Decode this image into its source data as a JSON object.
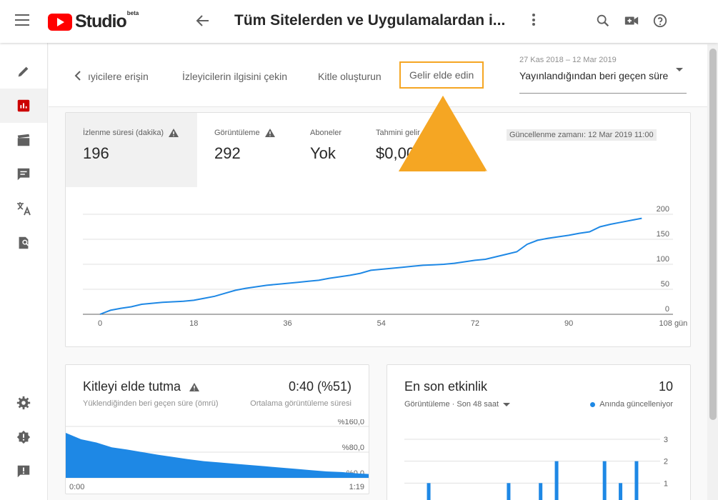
{
  "topbar": {
    "logo_text": "Studio",
    "logo_beta": "beta",
    "title": "Tüm Sitelerden ve Uygulamalardan i..."
  },
  "subnav": {
    "tabs": [
      {
        "label": "ıyicilere erişin"
      },
      {
        "label": "İzleyicilerin ilgisini çekin"
      },
      {
        "label": "Kitle oluşturun"
      },
      {
        "label": "Gelir elde edin"
      }
    ],
    "date_range": "27 Kas 2018 – 12 Mar 2019",
    "period": "Yayınlandığından beri geçen süre"
  },
  "overview": {
    "metrics": [
      {
        "label": "İzlenme süresi (dakika)",
        "value": "196",
        "warning": true
      },
      {
        "label": "Görüntüleme",
        "value": "292",
        "warning": true
      },
      {
        "label": "Aboneler",
        "value": "Yok",
        "warning": false
      },
      {
        "label": "Tahmini gelir",
        "value": "$0,00",
        "warning": false
      }
    ],
    "updated": "Güncellenme zamanı: 12 Mar 2019 11:00"
  },
  "chart_data": [
    {
      "type": "line",
      "y_ticks": [
        "200",
        "150",
        "100",
        "50",
        "0"
      ],
      "x_ticks": [
        "0",
        "18",
        "36",
        "54",
        "72",
        "90",
        "108 gün"
      ],
      "ylim": [
        0,
        200
      ],
      "xlim": [
        0,
        110
      ],
      "grid": true,
      "color": "#1e88e5",
      "series": [
        {
          "x": [
            0,
            2,
            4,
            6,
            8,
            10,
            12,
            14,
            16,
            18,
            20,
            22,
            24,
            26,
            28,
            30,
            32,
            34,
            36,
            38,
            40,
            42,
            44,
            46,
            48,
            50,
            52,
            54,
            56,
            58,
            60,
            62,
            64,
            66,
            68,
            70,
            72,
            74,
            76,
            78,
            80,
            82,
            84,
            86,
            88,
            90,
            92,
            94,
            96,
            98,
            100,
            102,
            104
          ],
          "values": [
            0,
            8,
            12,
            15,
            20,
            22,
            24,
            25,
            26,
            28,
            32,
            36,
            42,
            48,
            52,
            55,
            58,
            60,
            62,
            64,
            66,
            68,
            72,
            75,
            78,
            82,
            88,
            90,
            92,
            94,
            96,
            98,
            99,
            100,
            102,
            105,
            108,
            110,
            115,
            120,
            125,
            140,
            148,
            152,
            155,
            158,
            162,
            165,
            175,
            180,
            184,
            188,
            192
          ]
        }
      ]
    },
    {
      "type": "area",
      "y_ticks": [
        "%160,0",
        "%80,0",
        "%0,0"
      ],
      "x_ticks": [
        "0:00",
        "1:19"
      ],
      "ylim": [
        0,
        160
      ],
      "grid": true,
      "color": "#1e88e5",
      "series": [
        {
          "x": [
            0,
            4,
            8,
            12,
            16,
            20,
            24,
            28,
            32,
            36,
            40,
            44,
            48,
            52,
            56,
            60,
            64,
            68,
            72,
            76,
            79
          ],
          "values": [
            140,
            120,
            110,
            95,
            88,
            80,
            72,
            65,
            58,
            52,
            48,
            44,
            40,
            36,
            32,
            28,
            24,
            20,
            18,
            14,
            12
          ]
        }
      ]
    },
    {
      "type": "bar",
      "y_ticks": [
        "3",
        "2",
        "1"
      ],
      "ylim": [
        0,
        3
      ],
      "grid": true,
      "color": "#1e88e5",
      "series": [
        {
          "x": [
            1,
            6,
            8,
            9,
            12,
            13,
            14
          ],
          "values": [
            1,
            1,
            1,
            2,
            2,
            1,
            2
          ]
        }
      ]
    }
  ],
  "retention": {
    "title": "Kitleyi elde tutma",
    "subtitle": "Yüklendiğinden beri geçen süre (ömrü)",
    "value": "0:40 (%51)",
    "value_label": "Ortalama görüntüleme süresi"
  },
  "activity": {
    "title": "En son etkinlik",
    "count": "10",
    "filter": "Görüntüleme · Son 48 saat",
    "live": "Anında güncelleniyor"
  }
}
